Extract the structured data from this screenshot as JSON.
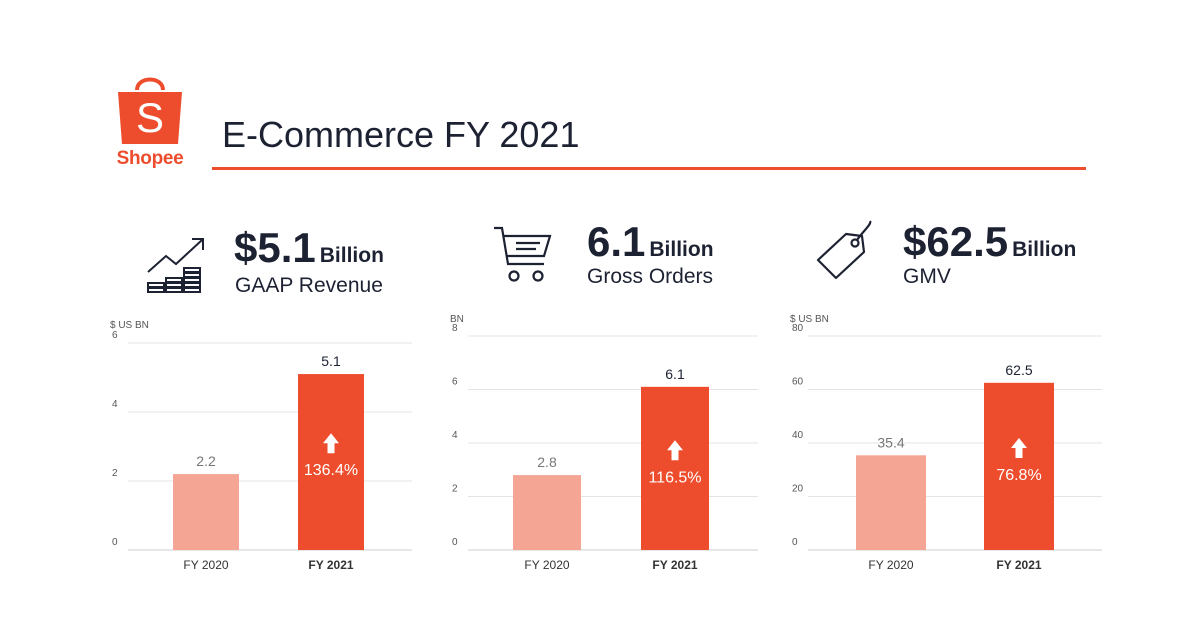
{
  "header": {
    "brand": "Shopee",
    "title": "E-Commerce FY 2021"
  },
  "colors": {
    "accent": "#ee4d2d",
    "bar_prev": "#f4a594",
    "bar_curr": "#ee4d2d",
    "text_dark": "#1d2233"
  },
  "kpis": [
    {
      "icon": "growth-chart-icon",
      "value": "$5.1",
      "unit": "Billion",
      "label": "GAAP Revenue"
    },
    {
      "icon": "shopping-cart-icon",
      "value": "6.1",
      "unit": "Billion",
      "label": "Gross Orders"
    },
    {
      "icon": "price-tag-icon",
      "value": "$62.5",
      "unit": "Billion",
      "label": "GMV"
    }
  ],
  "chart_data": [
    {
      "type": "bar",
      "ylabel": "$ US BN",
      "categories": [
        "FY 2020",
        "FY 2021"
      ],
      "values": [
        2.2,
        5.1
      ],
      "value_labels": [
        "2.2",
        "5.1"
      ],
      "ylim": [
        0,
        6
      ],
      "yticks": [
        0,
        2,
        4,
        6
      ],
      "growth": "136.4%",
      "grid": true
    },
    {
      "type": "bar",
      "ylabel": "BN",
      "categories": [
        "FY 2020",
        "FY 2021"
      ],
      "values": [
        2.8,
        6.1
      ],
      "value_labels": [
        "2.8",
        "6.1"
      ],
      "ylim": [
        0,
        8
      ],
      "yticks": [
        0,
        2,
        4,
        6,
        8
      ],
      "growth": "116.5%",
      "grid": true
    },
    {
      "type": "bar",
      "ylabel": "$ US BN",
      "categories": [
        "FY 2020",
        "FY 2021"
      ],
      "values": [
        35.4,
        62.5
      ],
      "value_labels": [
        "35.4",
        "62.5"
      ],
      "ylim": [
        0,
        80
      ],
      "yticks": [
        0,
        20,
        40,
        60,
        80
      ],
      "growth": "76.8%",
      "grid": true
    }
  ]
}
